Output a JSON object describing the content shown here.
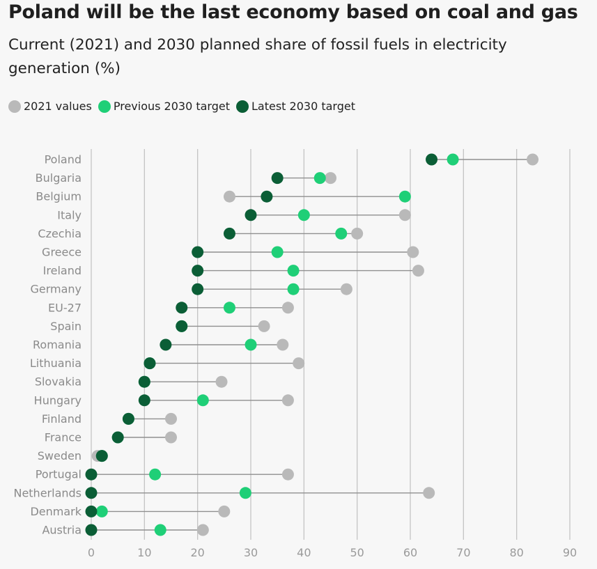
{
  "header": {
    "title": "Poland will be the last economy based on coal and gas",
    "subtitle": "Current (2021) and 2030 planned share of fossil fuels in electricity generation (%)"
  },
  "legend": {
    "items": [
      {
        "label": "2021 values",
        "color": "#b9b9b9"
      },
      {
        "label": "Previous 2030 target",
        "color": "#1fcf77"
      },
      {
        "label": "Latest 2030 target",
        "color": "#0b5e36"
      }
    ]
  },
  "chart_data": {
    "type": "dot-plot",
    "title": "Poland will be the last economy based on coal and gas",
    "subtitle": "Current (2021) and 2030 planned share of fossil fuels in electricity generation (%)",
    "xlim": [
      0,
      90
    ],
    "xticks": [
      0,
      10,
      20,
      30,
      40,
      50,
      60,
      70,
      80,
      90
    ],
    "grid": "vertical",
    "legend_position": "top-left",
    "series_names": [
      "2021 values",
      "Previous 2030 target",
      "Latest 2030 target"
    ],
    "colors": {
      "v2021": "#b9b9b9",
      "prev": "#1fcf77",
      "latest": "#0b5e36",
      "line": "#8f8f8f",
      "grid": "#c4c4c4"
    },
    "rows": [
      {
        "country": "Poland",
        "v2021": 83,
        "prev": 68,
        "latest": 64
      },
      {
        "country": "Bulgaria",
        "v2021": 45,
        "prev": 43,
        "latest": 35
      },
      {
        "country": "Belgium",
        "v2021": 26,
        "prev": 59,
        "latest": 33
      },
      {
        "country": "Italy",
        "v2021": 59,
        "prev": 40,
        "latest": 30
      },
      {
        "country": "Czechia",
        "v2021": 50,
        "prev": 47,
        "latest": 26
      },
      {
        "country": "Greece",
        "v2021": 60.5,
        "prev": 35,
        "latest": 20
      },
      {
        "country": "Ireland",
        "v2021": 61.5,
        "prev": 38,
        "latest": 20
      },
      {
        "country": "Germany",
        "v2021": 48,
        "prev": 38,
        "latest": 20
      },
      {
        "country": "EU-27",
        "v2021": 37,
        "prev": 26,
        "latest": 17
      },
      {
        "country": "Spain",
        "v2021": 32.5,
        "prev": 17,
        "latest": 17
      },
      {
        "country": "Romania",
        "v2021": 36,
        "prev": 30,
        "latest": 14
      },
      {
        "country": "Lithuania",
        "v2021": 39,
        "prev": 11,
        "latest": 11
      },
      {
        "country": "Slovakia",
        "v2021": 24.5,
        "prev": 10,
        "latest": 10
      },
      {
        "country": "Hungary",
        "v2021": 37,
        "prev": 21,
        "latest": 10
      },
      {
        "country": "Finland",
        "v2021": 15,
        "prev": 7,
        "latest": 7
      },
      {
        "country": "France",
        "v2021": 15,
        "prev": 5,
        "latest": 5
      },
      {
        "country": "Sweden",
        "v2021": 1.2,
        "prev": 2,
        "latest": 2
      },
      {
        "country": "Portugal",
        "v2021": 37,
        "prev": 12,
        "latest": 0
      },
      {
        "country": "Netherlands",
        "v2021": 63.5,
        "prev": 29,
        "latest": 0
      },
      {
        "country": "Denmark",
        "v2021": 25,
        "prev": 2,
        "latest": 0
      },
      {
        "country": "Austria",
        "v2021": 21,
        "prev": 13,
        "latest": 0
      }
    ]
  }
}
